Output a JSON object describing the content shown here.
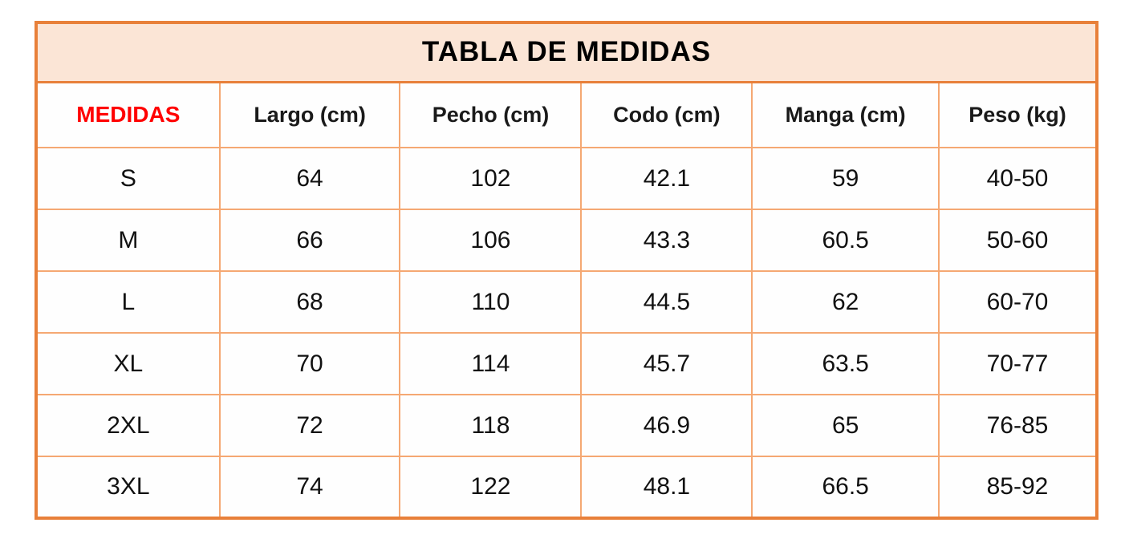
{
  "table": {
    "title": "TABLA DE MEDIDAS",
    "headers": [
      "MEDIDAS",
      "Largo (cm)",
      "Pecho (cm)",
      "Codo (cm)",
      "Manga (cm)",
      "Peso (kg)"
    ],
    "rows": [
      [
        "S",
        "64",
        "102",
        "42.1",
        "59",
        "40-50"
      ],
      [
        "M",
        "66",
        "106",
        "43.3",
        "60.5",
        "50-60"
      ],
      [
        "L",
        "68",
        "110",
        "44.5",
        "62",
        "60-70"
      ],
      [
        "XL",
        "70",
        "114",
        "45.7",
        "63.5",
        "70-77"
      ],
      [
        "2XL",
        "72",
        "118",
        "46.9",
        "65",
        "76-85"
      ],
      [
        "3XL",
        "74",
        "122",
        "48.1",
        "66.5",
        "85-92"
      ]
    ],
    "colors": {
      "outer_border": "#e8803a",
      "inner_border": "#f5a873",
      "title_background": "#fbe5d6",
      "first_header_text": "#ff0000",
      "text": "#111111",
      "page_background": "#ffffff"
    }
  },
  "chart_data": {
    "type": "table",
    "title": "TABLA DE MEDIDAS",
    "columns": [
      "MEDIDAS",
      "Largo (cm)",
      "Pecho (cm)",
      "Codo (cm)",
      "Manga (cm)",
      "Peso (kg)"
    ],
    "rows": [
      {
        "MEDIDAS": "S",
        "Largo (cm)": 64,
        "Pecho (cm)": 102,
        "Codo (cm)": 42.1,
        "Manga (cm)": 59,
        "Peso (kg)": "40-50"
      },
      {
        "MEDIDAS": "M",
        "Largo (cm)": 66,
        "Pecho (cm)": 106,
        "Codo (cm)": 43.3,
        "Manga (cm)": 60.5,
        "Peso (kg)": "50-60"
      },
      {
        "MEDIDAS": "L",
        "Largo (cm)": 68,
        "Pecho (cm)": 110,
        "Codo (cm)": 44.5,
        "Manga (cm)": 62,
        "Peso (kg)": "60-70"
      },
      {
        "MEDIDAS": "XL",
        "Largo (cm)": 70,
        "Pecho (cm)": 114,
        "Codo (cm)": 45.7,
        "Manga (cm)": 63.5,
        "Peso (kg)": "70-77"
      },
      {
        "MEDIDAS": "2XL",
        "Largo (cm)": 72,
        "Pecho (cm)": 118,
        "Codo (cm)": 46.9,
        "Manga (cm)": 65,
        "Peso (kg)": "76-85"
      },
      {
        "MEDIDAS": "3XL",
        "Largo (cm)": 74,
        "Pecho (cm)": 122,
        "Codo (cm)": 48.1,
        "Manga (cm)": 66.5,
        "Peso (kg)": "85-92"
      }
    ]
  }
}
